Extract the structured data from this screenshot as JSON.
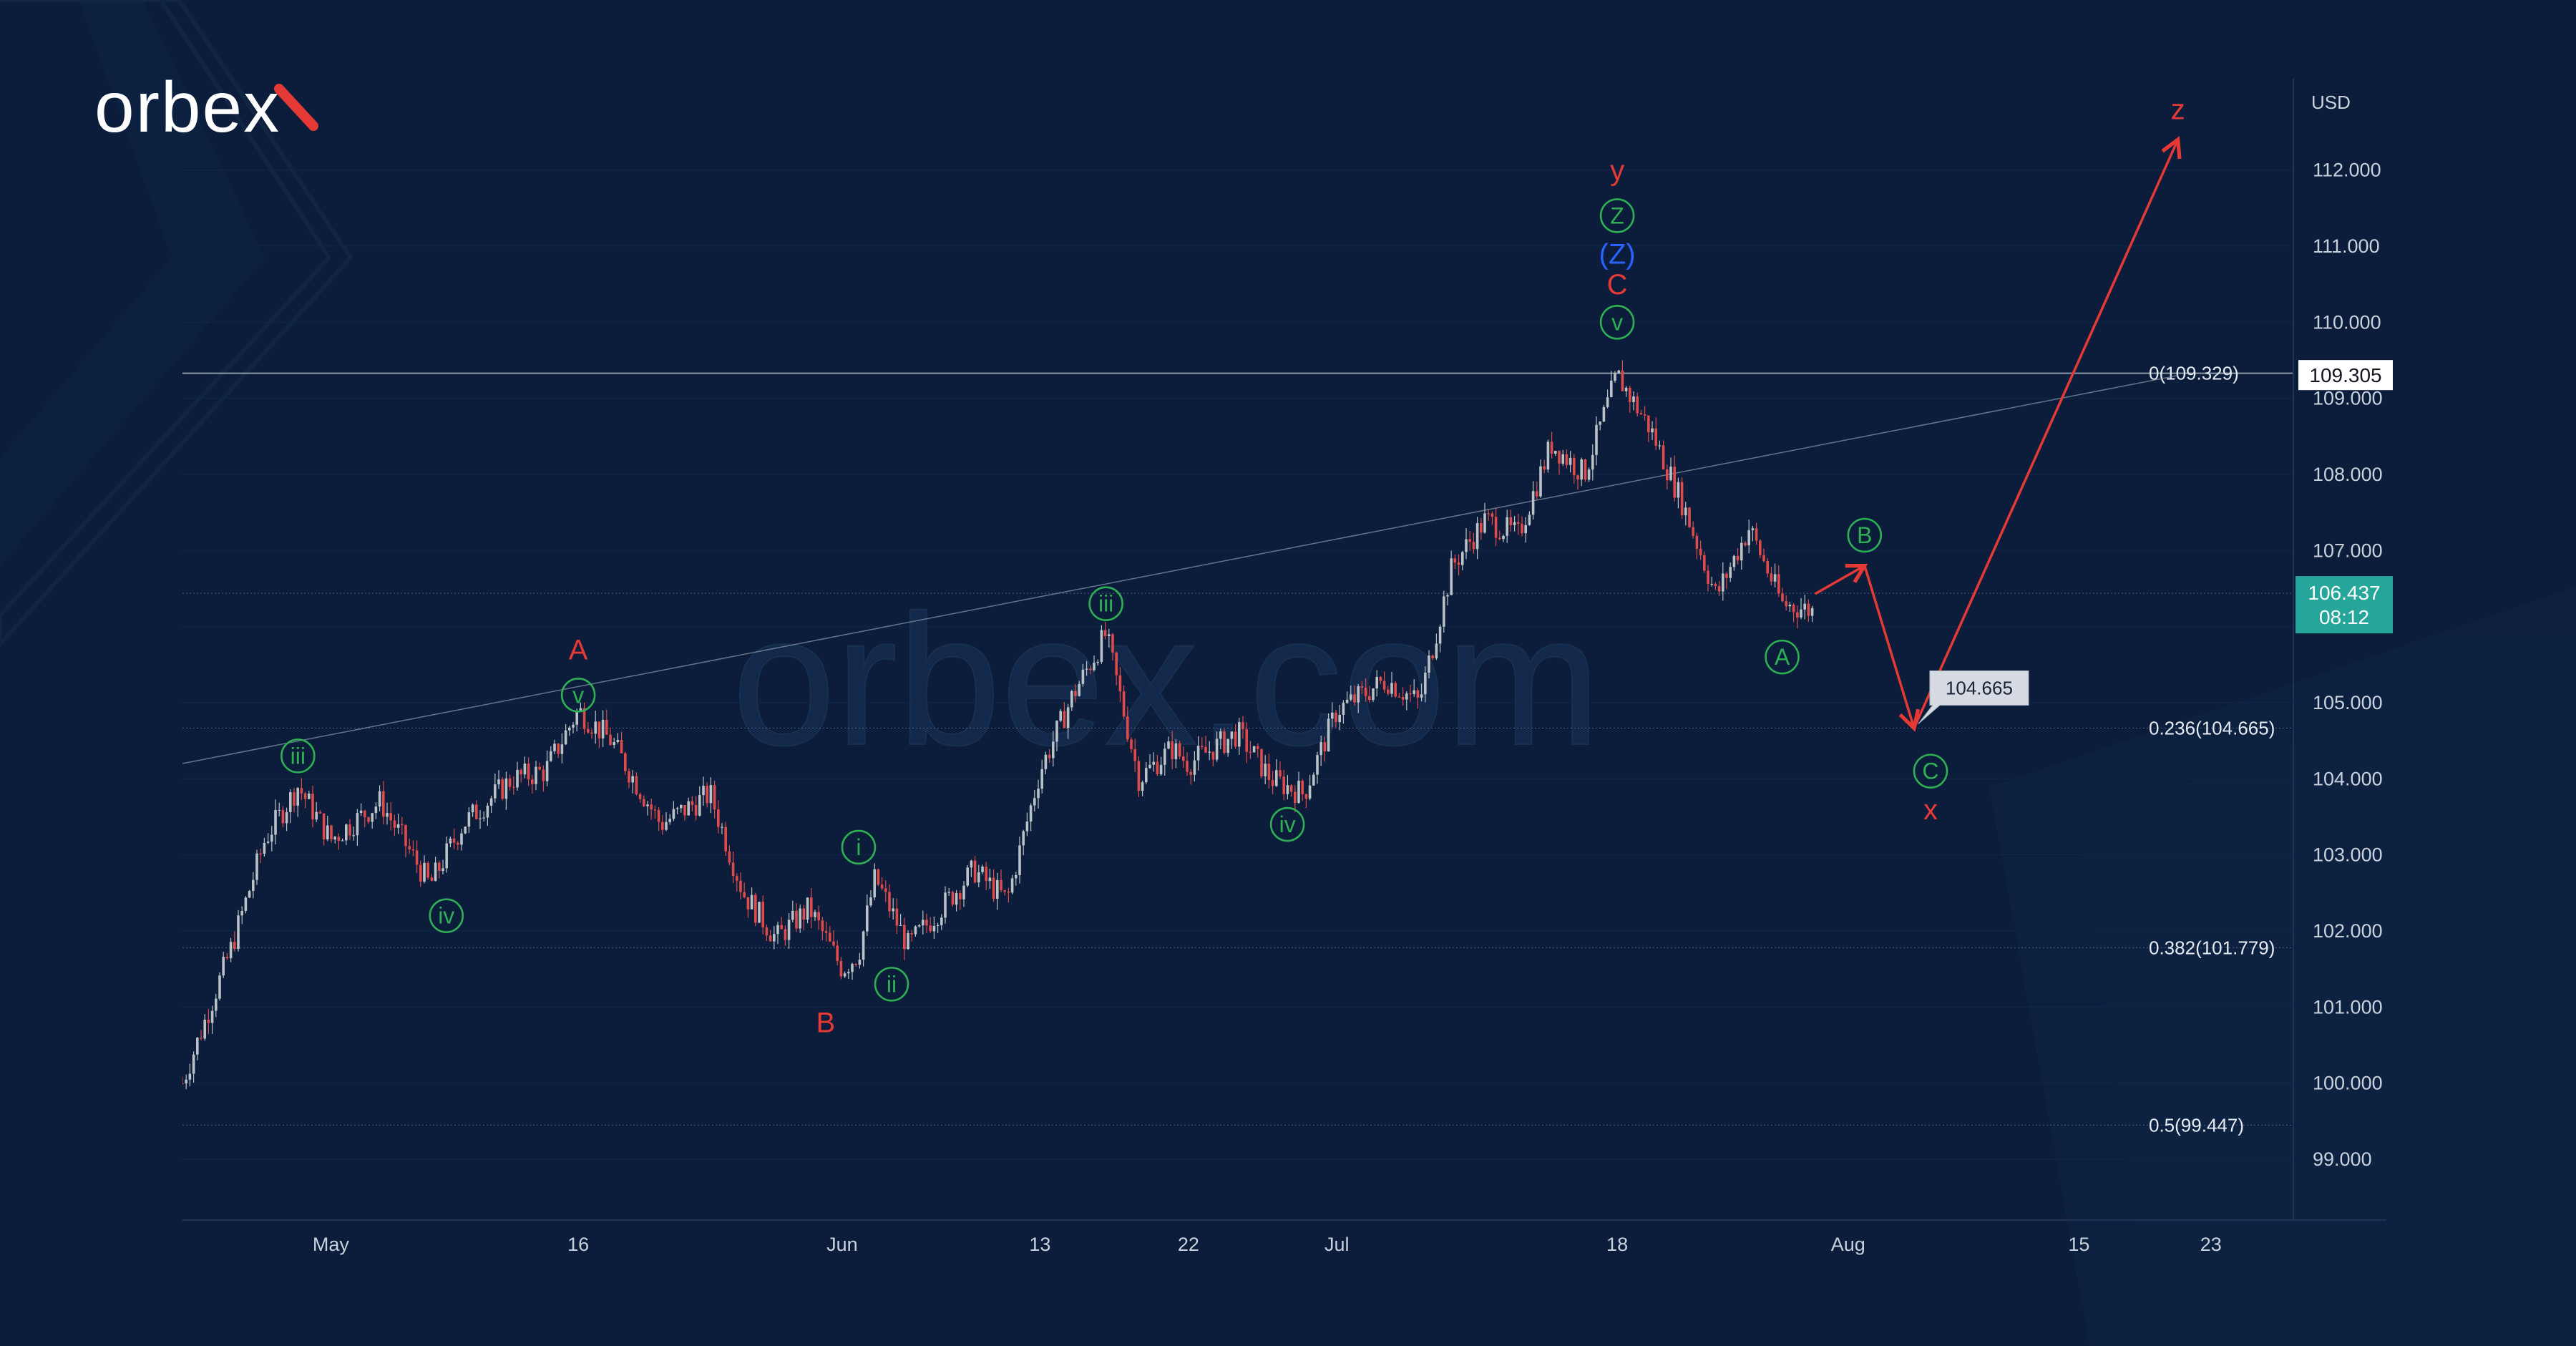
{
  "brand": {
    "name": "orbex",
    "watermark": "orbex.com"
  },
  "colors": {
    "background": "#0b1d3a",
    "bull": "#b9c2c6",
    "bear": "#e04a4a",
    "wave_green": "#2fae54",
    "wave_red": "#e53935",
    "wave_blue": "#2962ff",
    "price_tag": "#26a69a",
    "axis_text": "#c9d1dc",
    "brand_accent": "#e53935"
  },
  "chart_data": {
    "type": "line",
    "title": "",
    "currency": "USD",
    "ylim": [
      98.2,
      113.2
    ],
    "y_ticks": [
      99,
      100,
      101,
      102,
      103,
      104,
      105,
      106,
      107,
      108,
      109,
      110,
      111,
      112
    ],
    "y_tick_labels": [
      "99.000",
      "100.000",
      "101.000",
      "102.000",
      "103.000",
      "104.000",
      "105.000",
      "106.000",
      "107.000",
      "108.000",
      "109.000",
      "110.000",
      "111.000",
      "112.000"
    ],
    "x_domain": [
      "2022-04-22",
      "2022-08-28"
    ],
    "x_ticks": [
      {
        "date": "2022-05-01",
        "label": "May"
      },
      {
        "date": "2022-05-16",
        "label": "16"
      },
      {
        "date": "2022-06-01",
        "label": "Jun"
      },
      {
        "date": "2022-06-13",
        "label": "13"
      },
      {
        "date": "2022-06-22",
        "label": "22"
      },
      {
        "date": "2022-07-01",
        "label": "Jul"
      },
      {
        "date": "2022-07-18",
        "label": "18"
      },
      {
        "date": "2022-08-01",
        "label": "Aug"
      },
      {
        "date": "2022-08-15",
        "label": "15"
      },
      {
        "date": "2022-08-23",
        "label": "23"
      }
    ],
    "price_path": [
      [
        "2022-04-22",
        100.0
      ],
      [
        "2022-04-25",
        101.8
      ],
      [
        "2022-04-27",
        103.2
      ],
      [
        "2022-04-29",
        103.9
      ],
      [
        "2022-05-01",
        103.2
      ],
      [
        "2022-05-04",
        103.7
      ],
      [
        "2022-05-07",
        102.6
      ],
      [
        "2022-05-09",
        103.4
      ],
      [
        "2022-05-12",
        104.0
      ],
      [
        "2022-05-14",
        104.1
      ],
      [
        "2022-05-16",
        104.9
      ],
      [
        "2022-05-18",
        104.5
      ],
      [
        "2022-05-21",
        103.4
      ],
      [
        "2022-05-24",
        103.8
      ],
      [
        "2022-05-26",
        102.5
      ],
      [
        "2022-05-28",
        101.9
      ],
      [
        "2022-05-30",
        102.3
      ],
      [
        "2022-06-01",
        101.5
      ],
      [
        "2022-06-02",
        101.7
      ],
      [
        "2022-06-03",
        102.7
      ],
      [
        "2022-06-05",
        101.8
      ],
      [
        "2022-06-07",
        102.3
      ],
      [
        "2022-06-09",
        102.8
      ],
      [
        "2022-06-11",
        102.4
      ],
      [
        "2022-06-13",
        104.1
      ],
      [
        "2022-06-15",
        105.1
      ],
      [
        "2022-06-17",
        105.9
      ],
      [
        "2022-06-19",
        104.0
      ],
      [
        "2022-06-21",
        104.4
      ],
      [
        "2022-06-22",
        104.2
      ],
      [
        "2022-06-25",
        104.6
      ],
      [
        "2022-06-27",
        104.0
      ],
      [
        "2022-06-29",
        103.8
      ],
      [
        "2022-07-01",
        104.9
      ],
      [
        "2022-07-04",
        105.3
      ],
      [
        "2022-07-06",
        105.0
      ],
      [
        "2022-07-08",
        106.8
      ],
      [
        "2022-07-10",
        107.4
      ],
      [
        "2022-07-12",
        107.2
      ],
      [
        "2022-07-14",
        108.4
      ],
      [
        "2022-07-16",
        108.0
      ],
      [
        "2022-07-18",
        109.3
      ],
      [
        "2022-07-20",
        108.6
      ],
      [
        "2022-07-22",
        107.6
      ],
      [
        "2022-07-24",
        106.4
      ],
      [
        "2022-07-26",
        107.3
      ],
      [
        "2022-07-28",
        106.3
      ],
      [
        "2022-07-30",
        106.2
      ]
    ],
    "horizontal_lines": [
      {
        "label": "0(109.329)",
        "value": 109.329
      },
      {
        "label": "0.236(104.665)",
        "value": 104.665
      },
      {
        "label": "0.382(101.779)",
        "value": 101.779
      },
      {
        "label": "0.5(99.447)",
        "value": 99.447
      },
      {
        "label": "",
        "value": 106.437
      }
    ],
    "trendline": [
      [
        "2022-04-22",
        104.2
      ],
      [
        "2022-08-21",
        109.3
      ]
    ],
    "price_tags": {
      "level": {
        "value": 109.305,
        "label": "109.305"
      },
      "current": {
        "value": 106.437,
        "label": "106.437",
        "countdown": "08:12"
      }
    },
    "target_callout": {
      "label": "104.665",
      "date": "2022-08-05",
      "value": 104.665
    },
    "projection_path": [
      [
        "2022-07-30",
        106.43
      ],
      [
        "2022-08-02",
        106.8
      ],
      [
        "2022-08-05",
        104.665
      ],
      [
        "2022-08-21",
        112.4
      ]
    ],
    "wave_labels": [
      {
        "text": "iii",
        "date": "2022-04-29",
        "value": 104.3,
        "style": "circle-green"
      },
      {
        "text": "iv",
        "date": "2022-05-08",
        "value": 102.2,
        "style": "circle-green"
      },
      {
        "text": "v",
        "date": "2022-05-16",
        "value": 105.1,
        "style": "circle-green"
      },
      {
        "text": "A",
        "date": "2022-05-16",
        "value": 105.7,
        "style": "red"
      },
      {
        "text": "B",
        "date": "2022-05-31",
        "value": 100.8,
        "style": "red"
      },
      {
        "text": "i",
        "date": "2022-06-02",
        "value": 103.1,
        "style": "circle-green"
      },
      {
        "text": "ii",
        "date": "2022-06-04",
        "value": 101.3,
        "style": "circle-green"
      },
      {
        "text": "iii",
        "date": "2022-06-17",
        "value": 106.3,
        "style": "circle-green"
      },
      {
        "text": "iv",
        "date": "2022-06-28",
        "value": 103.4,
        "style": "circle-green"
      },
      {
        "text": "v",
        "date": "2022-07-18",
        "value": 110.0,
        "style": "circle-green"
      },
      {
        "text": "C",
        "date": "2022-07-18",
        "value": 110.5,
        "style": "red"
      },
      {
        "text": "(Z)",
        "date": "2022-07-18",
        "value": 110.9,
        "style": "blue"
      },
      {
        "text": "Z",
        "date": "2022-07-18",
        "value": 111.4,
        "style": "circle-green"
      },
      {
        "text": "y",
        "date": "2022-07-18",
        "value": 112.0,
        "style": "red"
      },
      {
        "text": "A",
        "date": "2022-07-28",
        "value": 105.6,
        "style": "circle-green"
      },
      {
        "text": "B",
        "date": "2022-08-02",
        "value": 107.2,
        "style": "circle-green"
      },
      {
        "text": "C",
        "date": "2022-08-06",
        "value": 104.1,
        "style": "circle-green"
      },
      {
        "text": "x",
        "date": "2022-08-06",
        "value": 103.6,
        "style": "red"
      },
      {
        "text": "z",
        "date": "2022-08-21",
        "value": 112.8,
        "style": "red"
      }
    ]
  }
}
